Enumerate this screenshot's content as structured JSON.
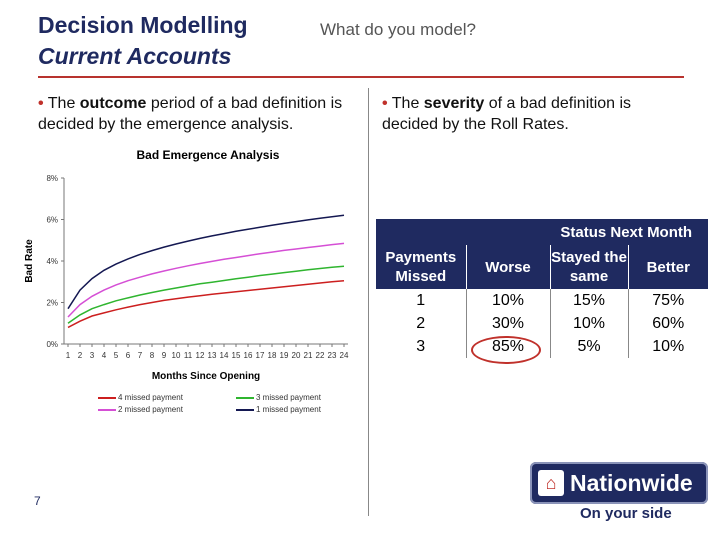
{
  "slide": {
    "title_line1": "Decision Modelling",
    "title_line2": "Current Accounts",
    "subtitle": "What do you model?",
    "page_number": "7"
  },
  "left_bullet": {
    "prefix": "The ",
    "bold": "outcome",
    "suffix": " period of a bad definition is decided by the emergence analysis."
  },
  "right_bullet": {
    "prefix": "The ",
    "bold": "severity",
    "suffix": " of a bad definition is decided by the Roll Rates."
  },
  "chart_data": {
    "type": "line",
    "title": "Bad Emergence Analysis",
    "xlabel": "Months Since Opening",
    "ylabel": "Bad Rate",
    "x": [
      1,
      2,
      3,
      4,
      5,
      6,
      7,
      8,
      9,
      10,
      11,
      12,
      13,
      14,
      15,
      16,
      17,
      18,
      19,
      20,
      21,
      22,
      23,
      24
    ],
    "x_tick_labels": [
      "1",
      "2",
      "3",
      "4",
      "5",
      "6",
      "7",
      "8",
      "9",
      "10",
      "11",
      "12",
      "13",
      "14",
      "15",
      "16",
      "17",
      "18",
      "19",
      "20",
      "21",
      "22",
      "23",
      "24"
    ],
    "y_ticks": [
      0,
      2,
      4,
      6,
      8
    ],
    "y_tick_labels": [
      "0%",
      "2%",
      "4%",
      "6%",
      "8%"
    ],
    "ylim": [
      0,
      8
    ],
    "grid": false,
    "legend_position": "bottom",
    "series": [
      {
        "name": "4 missed payment",
        "color": "#cc1f1f",
        "values": [
          0.8,
          1.1,
          1.35,
          1.5,
          1.65,
          1.78,
          1.9,
          2.0,
          2.1,
          2.18,
          2.26,
          2.33,
          2.4,
          2.46,
          2.52,
          2.58,
          2.64,
          2.7,
          2.76,
          2.82,
          2.88,
          2.94,
          3.0,
          3.05
        ]
      },
      {
        "name": "3 missed payment",
        "color": "#2fb52f",
        "values": [
          1.0,
          1.4,
          1.7,
          1.9,
          2.08,
          2.22,
          2.36,
          2.48,
          2.6,
          2.7,
          2.8,
          2.9,
          2.98,
          3.06,
          3.14,
          3.22,
          3.3,
          3.37,
          3.44,
          3.51,
          3.58,
          3.64,
          3.7,
          3.75
        ]
      },
      {
        "name": "2 missed payment",
        "color": "#d54fd5",
        "values": [
          1.3,
          1.9,
          2.3,
          2.6,
          2.85,
          3.05,
          3.22,
          3.38,
          3.52,
          3.65,
          3.77,
          3.88,
          3.98,
          4.08,
          4.17,
          4.26,
          4.35,
          4.43,
          4.51,
          4.58,
          4.65,
          4.72,
          4.79,
          4.85
        ]
      },
      {
        "name": "1 missed payment",
        "color": "#141852",
        "values": [
          1.7,
          2.6,
          3.15,
          3.55,
          3.85,
          4.1,
          4.32,
          4.5,
          4.67,
          4.82,
          4.96,
          5.09,
          5.21,
          5.32,
          5.43,
          5.53,
          5.63,
          5.72,
          5.81,
          5.9,
          5.98,
          6.06,
          6.13,
          6.2
        ]
      }
    ]
  },
  "status_table": {
    "group_header": "Status Next Month",
    "row_header": "Payments Missed",
    "columns": [
      "Worse",
      "Stayed the same",
      "Better"
    ],
    "rows": [
      {
        "missed": "1",
        "values": [
          "10%",
          "15%",
          "75%"
        ]
      },
      {
        "missed": "2",
        "values": [
          "30%",
          "10%",
          "60%"
        ]
      },
      {
        "missed": "3",
        "values": [
          "85%",
          "5%",
          "10%"
        ]
      }
    ]
  },
  "logo": {
    "text": "Nationwide",
    "tagline": "On your side"
  },
  "colors": {
    "navy": "#1f2a60",
    "red": "#c0312b"
  }
}
